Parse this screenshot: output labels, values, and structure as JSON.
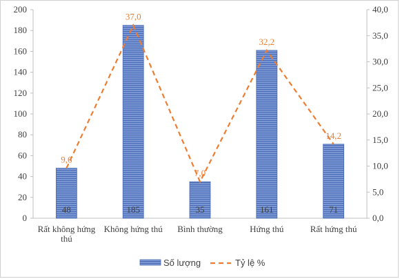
{
  "chart_data": {
    "type": "bar",
    "categories": [
      [
        "Rất không hứng",
        "thú"
      ],
      [
        "Không hứng thú"
      ],
      [
        "Bình thường"
      ],
      [
        "Hứng thú"
      ],
      [
        "Rất hứng thú"
      ]
    ],
    "series": [
      {
        "name": "Số lượng",
        "type": "bar",
        "axis": "left",
        "values": [
          48,
          185,
          35,
          161,
          71
        ],
        "data_labels": [
          "48",
          "185",
          "35",
          "161",
          "71"
        ],
        "color": "#5b7fc4"
      },
      {
        "name": "Tỷ lệ %",
        "type": "line",
        "axis": "right",
        "values": [
          9.6,
          37.0,
          7.0,
          32.2,
          14.2
        ],
        "data_labels": [
          "9,6",
          "37,0",
          "7,0",
          "32,2",
          "14,2"
        ],
        "color": "#ed7d31",
        "dashed": true
      }
    ],
    "y_left": {
      "ylim": [
        0,
        200
      ],
      "ticks": [
        "0",
        "20",
        "40",
        "60",
        "80",
        "100",
        "120",
        "140",
        "160",
        "180",
        "200"
      ]
    },
    "y_right": {
      "ylim": [
        0,
        40
      ],
      "ticks": [
        "0,0",
        "5,0",
        "10,0",
        "15,0",
        "20,0",
        "25,0",
        "30,0",
        "35,0",
        "40,0"
      ]
    },
    "grid": false,
    "legend": "bottom-center",
    "title": "",
    "xlabel": "",
    "ylabel": ""
  }
}
